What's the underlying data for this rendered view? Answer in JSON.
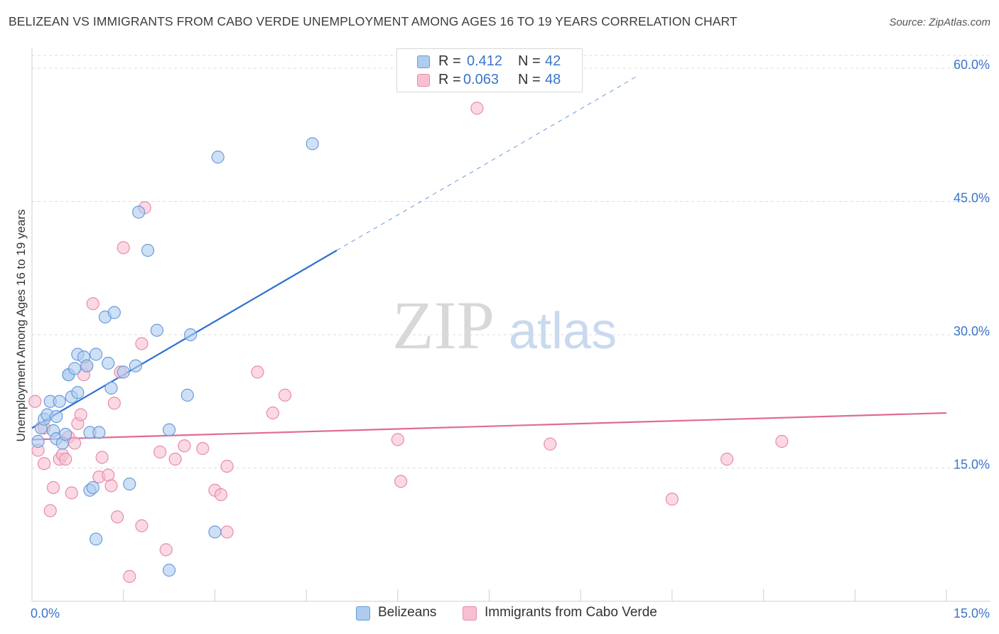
{
  "title": "BELIZEAN VS IMMIGRANTS FROM CABO VERDE UNEMPLOYMENT AMONG AGES 16 TO 19 YEARS CORRELATION CHART",
  "source": "Source: ZipAtlas.com",
  "watermark": {
    "zip": "ZIP",
    "atlas": "atlas"
  },
  "legend": {
    "rows": [
      {
        "r_label": "R =",
        "r_value": "0.412",
        "n_label": "N =",
        "n_value": "42"
      },
      {
        "r_label": "R =",
        "r_value": "0.063",
        "n_label": "N =",
        "n_value": "48"
      }
    ]
  },
  "colors": {
    "blue_fill": "#aecbf0",
    "blue_stroke": "#6a9bd8",
    "blue_line": "#2e6fd0",
    "pink_fill": "#f7c0d2",
    "pink_stroke": "#e88aa9",
    "pink_line": "#e06b95",
    "grid": "#dcdcdc",
    "axis_text": "#3a74c9"
  },
  "chart_data": {
    "type": "scatter",
    "title": "BELIZEAN VS IMMIGRANTS FROM CABO VERDE UNEMPLOYMENT AMONG AGES 16 TO 19 YEARS CORRELATION CHART",
    "xlabel": "",
    "ylabel": "Unemployment Among Ages 16 to 19 years",
    "xlim": [
      0,
      15
    ],
    "ylim": [
      0,
      60
    ],
    "x_tick_labels": [
      "0.0%",
      "15.0%"
    ],
    "y_ticks": [
      15,
      30,
      45,
      60
    ],
    "y_tick_labels": [
      "15.0%",
      "30.0%",
      "45.0%",
      "60.0%"
    ],
    "grid": true,
    "legend_position": "top-center",
    "series": [
      {
        "name": "Belizeans",
        "r": 0.412,
        "n": 42,
        "trend": {
          "x1": 0.0,
          "y1": 19.5,
          "x2": 5.0,
          "y2": 39.5,
          "dash_to_x": 9.9,
          "dash_to_y": 59.0
        },
        "points": [
          [
            0.1,
            18.0
          ],
          [
            0.15,
            19.5
          ],
          [
            0.2,
            20.5
          ],
          [
            0.25,
            21.0
          ],
          [
            0.3,
            22.5
          ],
          [
            0.35,
            19.2
          ],
          [
            0.4,
            20.8
          ],
          [
            0.4,
            18.3
          ],
          [
            0.45,
            22.5
          ],
          [
            0.5,
            17.8
          ],
          [
            0.55,
            18.8
          ],
          [
            0.6,
            25.5
          ],
          [
            0.6,
            25.5
          ],
          [
            0.65,
            23.0
          ],
          [
            0.7,
            26.2
          ],
          [
            0.75,
            23.5
          ],
          [
            0.75,
            27.8
          ],
          [
            0.85,
            27.5
          ],
          [
            0.9,
            26.5
          ],
          [
            0.95,
            19.0
          ],
          [
            0.95,
            12.5
          ],
          [
            1.0,
            12.8
          ],
          [
            1.05,
            7.0
          ],
          [
            1.05,
            27.8
          ],
          [
            1.1,
            19.0
          ],
          [
            1.2,
            32.0
          ],
          [
            1.25,
            26.8
          ],
          [
            1.3,
            24.0
          ],
          [
            1.35,
            32.5
          ],
          [
            1.5,
            25.8
          ],
          [
            1.6,
            13.2
          ],
          [
            1.7,
            26.5
          ],
          [
            1.75,
            43.8
          ],
          [
            1.9,
            39.5
          ],
          [
            2.05,
            30.5
          ],
          [
            2.25,
            19.3
          ],
          [
            2.25,
            3.5
          ],
          [
            2.55,
            23.2
          ],
          [
            2.6,
            30.0
          ],
          [
            3.05,
            50.0
          ],
          [
            3.0,
            7.8
          ],
          [
            4.6,
            51.5
          ]
        ]
      },
      {
        "name": "Immigrants from Cabo Verde",
        "r": 0.063,
        "n": 48,
        "trend": {
          "x1": 0.0,
          "y1": 18.2,
          "x2": 15.0,
          "y2": 21.2
        },
        "points": [
          [
            0.05,
            22.5
          ],
          [
            0.1,
            17.0
          ],
          [
            0.2,
            15.5
          ],
          [
            0.2,
            19.5
          ],
          [
            0.3,
            10.2
          ],
          [
            0.35,
            12.8
          ],
          [
            0.45,
            16.0
          ],
          [
            0.5,
            16.5
          ],
          [
            0.55,
            16.0
          ],
          [
            0.6,
            18.5
          ],
          [
            0.65,
            12.2
          ],
          [
            0.7,
            17.8
          ],
          [
            0.75,
            20.0
          ],
          [
            0.8,
            21.0
          ],
          [
            0.85,
            25.5
          ],
          [
            0.9,
            26.5
          ],
          [
            1.0,
            33.5
          ],
          [
            1.1,
            14.0
          ],
          [
            1.15,
            16.2
          ],
          [
            1.25,
            14.2
          ],
          [
            1.3,
            13.0
          ],
          [
            1.35,
            22.3
          ],
          [
            1.4,
            9.5
          ],
          [
            1.45,
            25.8
          ],
          [
            1.5,
            39.8
          ],
          [
            1.6,
            2.8
          ],
          [
            1.8,
            8.5
          ],
          [
            1.8,
            29.0
          ],
          [
            1.85,
            44.3
          ],
          [
            2.1,
            16.8
          ],
          [
            2.2,
            5.8
          ],
          [
            2.35,
            16.0
          ],
          [
            2.5,
            17.5
          ],
          [
            2.8,
            17.2
          ],
          [
            3.0,
            12.5
          ],
          [
            3.1,
            12.0
          ],
          [
            3.2,
            15.2
          ],
          [
            3.2,
            7.8
          ],
          [
            3.7,
            25.8
          ],
          [
            3.95,
            21.2
          ],
          [
            4.15,
            23.2
          ],
          [
            6.0,
            18.2
          ],
          [
            6.05,
            13.5
          ],
          [
            7.3,
            55.5
          ],
          [
            8.5,
            17.7
          ],
          [
            10.5,
            11.5
          ],
          [
            11.4,
            16.0
          ],
          [
            12.3,
            18.0
          ]
        ]
      }
    ]
  }
}
